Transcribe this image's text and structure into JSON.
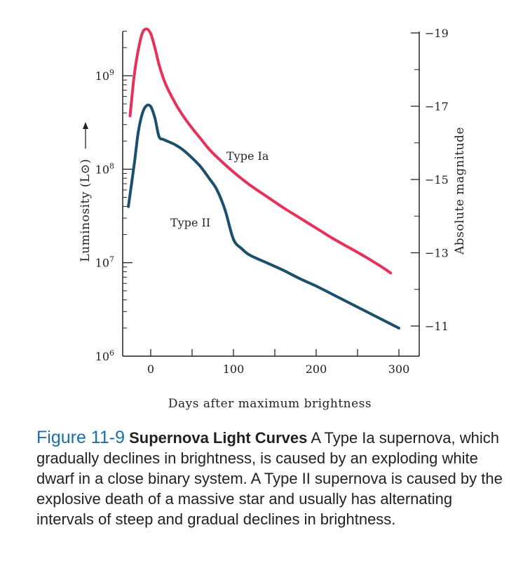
{
  "chart_data": {
    "type": "line",
    "xlabel": "Days after maximum brightness",
    "ylabel_left": "Luminosity (L⊙)",
    "ylabel_right": "Absolute magnitude",
    "xlim": [
      -30,
      310
    ],
    "x_ticks": [
      0,
      100,
      200,
      300
    ],
    "x_ticks_minor": [
      50,
      150,
      250
    ],
    "ylim_log10": [
      6,
      9.5
    ],
    "y_left_ticks": [
      {
        "exp": 9,
        "base": "10",
        "sup": "9"
      },
      {
        "exp": 8,
        "base": "10",
        "sup": "8"
      },
      {
        "exp": 7,
        "base": "10",
        "sup": "7"
      },
      {
        "exp": 6,
        "base": "10",
        "sup": "6"
      }
    ],
    "y_right_ticks": [
      "−19",
      "−17",
      "−15",
      "−13",
      "−11"
    ],
    "y_right_values": [
      -19,
      -17,
      -15,
      -13,
      -11
    ],
    "series": [
      {
        "name": "Type Ia",
        "color": "#e8305a",
        "x": [
          -25,
          -20,
          -15,
          -10,
          -5,
          0,
          5,
          10,
          15,
          20,
          30,
          40,
          50,
          60,
          70,
          80,
          100,
          120,
          140,
          160,
          180,
          200,
          220,
          240,
          260,
          280,
          290
        ],
        "log_L": [
          8.57,
          9.0,
          9.28,
          9.46,
          9.5,
          9.45,
          9.3,
          9.12,
          8.98,
          8.87,
          8.7,
          8.56,
          8.44,
          8.33,
          8.22,
          8.13,
          7.97,
          7.83,
          7.71,
          7.59,
          7.48,
          7.37,
          7.26,
          7.16,
          7.06,
          6.95,
          6.89
        ]
      },
      {
        "name": "Type II",
        "color": "#1a4f6e",
        "x": [
          -27,
          -20,
          -15,
          -10,
          -5,
          0,
          5,
          10,
          15,
          20,
          30,
          40,
          50,
          60,
          70,
          80,
          90,
          100,
          110,
          120,
          140,
          160,
          180,
          200,
          220,
          240,
          260,
          280,
          300
        ],
        "log_L": [
          7.6,
          8.05,
          8.4,
          8.6,
          8.68,
          8.67,
          8.55,
          8.35,
          8.32,
          8.3,
          8.26,
          8.2,
          8.12,
          8.03,
          7.91,
          7.78,
          7.56,
          7.25,
          7.15,
          7.08,
          7.0,
          6.92,
          6.83,
          6.75,
          6.66,
          6.57,
          6.48,
          6.39,
          6.3
        ]
      }
    ]
  },
  "caption": {
    "number": "Figure 11-9",
    "title": "Supernova Light Curves",
    "text": "A Type Ia supernova, which gradually declines in brightness, is caused by an exploding white dwarf in a close binary system. A Type II supernova is caused by the explosive death of a massive star and usually has alternating intervals of steep and gradual declines in brightness."
  }
}
